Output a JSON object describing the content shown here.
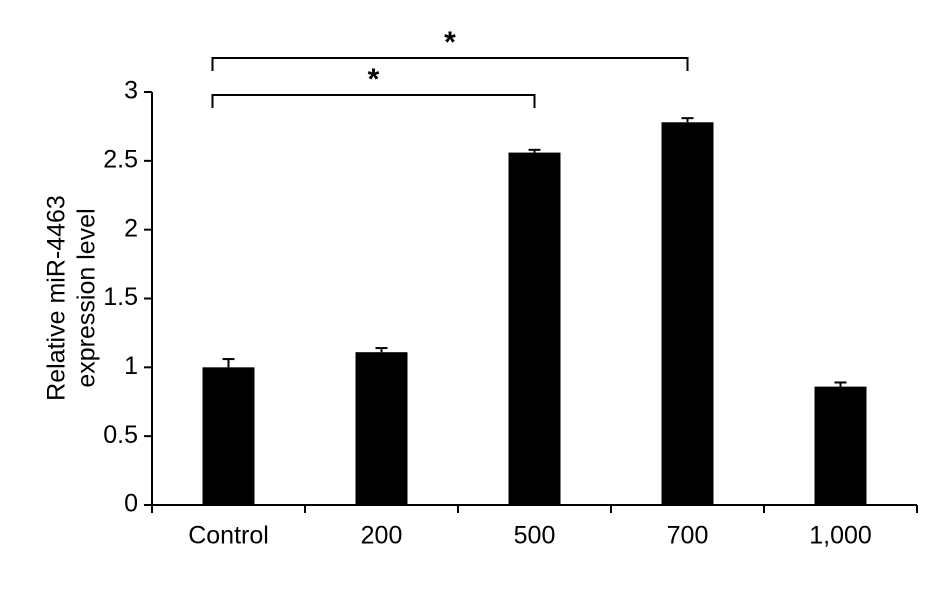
{
  "chart_data": {
    "type": "bar",
    "y_label": [
      "Relative miR-4463",
      "expression level"
    ],
    "categories": [
      "Control",
      "200",
      "500",
      "700",
      "1,000"
    ],
    "values": [
      1.0,
      1.11,
      2.56,
      2.78,
      0.86
    ],
    "errors": [
      0.06,
      0.03,
      0.02,
      0.03,
      0.03
    ],
    "color": "#000000",
    "ylim": [
      0,
      3
    ],
    "yticks": [
      0,
      0.5,
      1,
      1.5,
      2,
      2.5,
      3
    ],
    "significance": [
      {
        "from": 0,
        "to": 2,
        "label": "*"
      },
      {
        "from": 0,
        "to": 3,
        "label": "*"
      }
    ]
  }
}
